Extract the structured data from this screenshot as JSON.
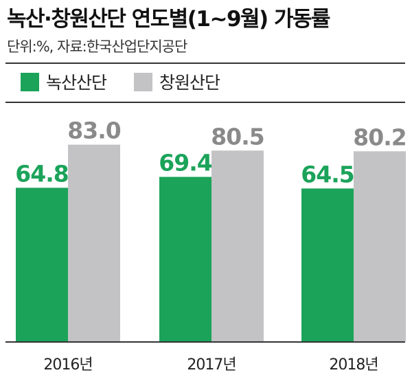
{
  "header": {
    "title": "녹산·창원산단 연도별(1~9월) 가동률",
    "source": "단위:%, 자료:한국산업단지공단"
  },
  "colors": {
    "series_green": "#1ba35a",
    "series_gray": "#c3c3c5",
    "value_gray": "#8a8a8a"
  },
  "chart_data": {
    "type": "bar",
    "categories": [
      "2016년",
      "2017년",
      "2018년"
    ],
    "series": [
      {
        "name": "녹산산단",
        "values": [
          64.8,
          69.4,
          64.5
        ]
      },
      {
        "name": "창원산단",
        "values": [
          83.0,
          80.5,
          80.2
        ]
      }
    ],
    "title": "녹산·창원산단 연도별(1~9월) 가동률",
    "xlabel": "",
    "ylabel": "",
    "grid": false,
    "legend": "top-left",
    "data_labels": true
  }
}
